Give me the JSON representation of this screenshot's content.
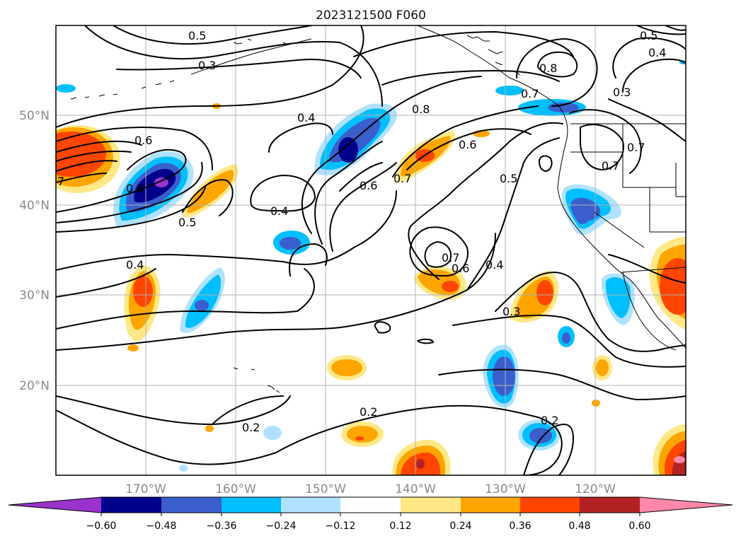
{
  "map": {
    "title": "2023121500 F060",
    "lat_labels": [
      "50°N",
      "40°N",
      "30°N",
      "20°N"
    ],
    "lon_labels": [
      "170°W",
      "160°W",
      "150°W",
      "140°W",
      "130°W",
      "120°W"
    ],
    "extent": {
      "lon_min": -180,
      "lon_max": -110,
      "lat_min": 10,
      "lat_max": 60
    },
    "contour_labels": [
      "0.5",
      "0.3",
      "0.4",
      "0.6",
      "0.8",
      "0.7",
      "0.8",
      "0.7",
      "0.6",
      "0.5",
      "0.8",
      "0.3",
      "0.6",
      "0.7",
      "0.7",
      "0.4",
      "0.5",
      "0.4",
      "0.7",
      "0.6",
      "0.4",
      "0.3",
      "0.2",
      "0.2",
      "0.2",
      "0.5",
      "0.4",
      "7"
    ],
    "colorbar": {
      "ticks": [
        "−0.60",
        "−0.48",
        "−0.36",
        "−0.24",
        "−0.12",
        "0.12",
        "0.24",
        "0.36",
        "0.48",
        "0.60"
      ],
      "colors": [
        "#9933cc",
        "#00008b",
        "#3a5fcd",
        "#00bfff",
        "#b0e2ff",
        "#ffffff",
        "#ffe885",
        "#ffa500",
        "#ff4500",
        "#b22222",
        "#ff88aa"
      ]
    }
  }
}
